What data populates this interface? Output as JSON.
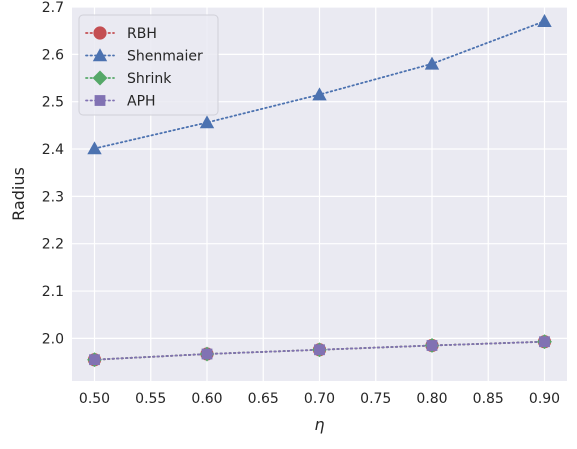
{
  "chart_data": {
    "type": "line",
    "title": "",
    "xlabel": "η",
    "ylabel": "Radius",
    "x": [
      0.5,
      0.6,
      0.7,
      0.8,
      0.9
    ],
    "xlim": [
      0.48,
      0.92
    ],
    "ylim": [
      1.91,
      2.7
    ],
    "xticks": [
      "0.50",
      "0.55",
      "0.60",
      "0.65",
      "0.70",
      "0.75",
      "0.80",
      "0.85",
      "0.90"
    ],
    "yticks": [
      "2.0",
      "2.1",
      "2.2",
      "2.3",
      "2.4",
      "2.5",
      "2.6",
      "2.7"
    ],
    "grid": true,
    "legend_position": "top-left",
    "series": [
      {
        "name": "RBH",
        "values": [
          1.955,
          1.967,
          1.976,
          1.985,
          1.993
        ],
        "color": "#c44e52",
        "marker": "circle",
        "linestyle": "dotted"
      },
      {
        "name": "Shenmaier",
        "values": [
          2.401,
          2.456,
          2.515,
          2.58,
          2.67
        ],
        "color": "#4c72b0",
        "marker": "triangle",
        "linestyle": "dotted"
      },
      {
        "name": "Shrink",
        "values": [
          1.955,
          1.967,
          1.976,
          1.985,
          1.993
        ],
        "color": "#55a868",
        "marker": "diamond",
        "linestyle": "dotted"
      },
      {
        "name": "APH",
        "values": [
          1.955,
          1.967,
          1.976,
          1.985,
          1.993
        ],
        "color": "#8172b3",
        "marker": "square",
        "linestyle": "dotted"
      }
    ]
  }
}
